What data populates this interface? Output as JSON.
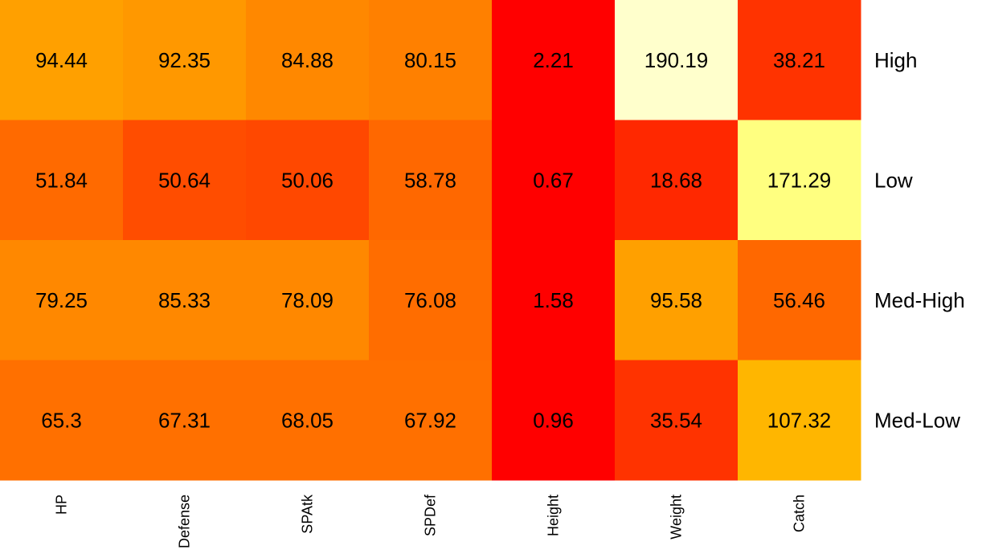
{
  "chart_data": {
    "type": "heatmap",
    "title": "",
    "xlabel": "",
    "ylabel": "",
    "columns": [
      "HP",
      "Defense",
      "SPAtk",
      "SPDef",
      "Height",
      "Weight",
      "Catch"
    ],
    "rows": [
      "High",
      "Low",
      "Med-High",
      "Med-Low"
    ],
    "values": [
      [
        94.44,
        92.35,
        84.88,
        80.15,
        2.21,
        190.19,
        38.21
      ],
      [
        51.84,
        50.64,
        50.06,
        58.78,
        0.67,
        18.68,
        171.29
      ],
      [
        79.25,
        85.33,
        78.09,
        76.08,
        1.58,
        95.58,
        56.46
      ],
      [
        65.3,
        67.31,
        68.05,
        67.92,
        0.96,
        35.54,
        107.32
      ]
    ],
    "labels": [
      [
        "94.44",
        "92.35",
        "84.88",
        "80.15",
        "2.21",
        "190.19",
        "38.21"
      ],
      [
        "51.84",
        "50.64",
        "50.06",
        "58.78",
        "0.67",
        "18.68",
        "171.29"
      ],
      [
        "79.25",
        "85.33",
        "78.09",
        "76.08",
        "1.58",
        "95.58",
        "56.46"
      ],
      [
        "65.3",
        "67.31",
        "68.05",
        "67.92",
        "0.96",
        "35.54",
        "107.32"
      ]
    ],
    "colors": [
      [
        "#FFA000",
        "#FF9800",
        "#FF8800",
        "#FF8000",
        "#FF0000",
        "#FFFFCC",
        "#FF3300"
      ],
      [
        "#FF6A00",
        "#FF4D00",
        "#FF4800",
        "#FF6800",
        "#FF0000",
        "#FF2800",
        "#FFFF80"
      ],
      [
        "#FF8800",
        "#FF8800",
        "#FF8800",
        "#FF6D00",
        "#FF0000",
        "#FFA000",
        "#FF6800"
      ],
      [
        "#FF7000",
        "#FF7000",
        "#FF7000",
        "#FF7000",
        "#FF0000",
        "#FF3300",
        "#FFB600"
      ]
    ],
    "colormap": "heat (red to light yellow)",
    "legend": "none"
  }
}
